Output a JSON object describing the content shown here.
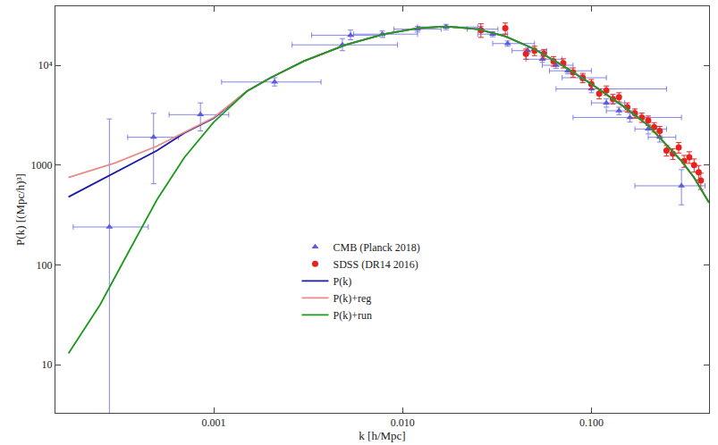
{
  "chart_data": {
    "type": "scatter",
    "x_label": "k [h/Mpc]",
    "y_label": "P(k) [(Mpc/h)³]",
    "log": true,
    "grid": false,
    "legend": "center",
    "xlim": [
      0.000145,
      0.42
    ],
    "ylim": [
      3.3,
      39000
    ],
    "xticks": [
      0.001,
      {
        "value": 0.01,
        "label": "0.010"
      },
      {
        "value": 0.1,
        "label": "0.100"
      }
    ],
    "yticks": [
      10,
      100,
      1000,
      {
        "value": 10000,
        "label": "10⁴"
      }
    ],
    "series": [
      {
        "name": "CMB (Planck 2018)",
        "type": "scatter",
        "marker": "triangle-up",
        "color": "#5c5ce0",
        "x": [
          0.00028,
          0.00048,
          0.00085,
          0.0021,
          0.0048,
          0.0053,
          0.0078,
          0.012,
          0.017,
          0.026,
          0.03,
          0.036,
          0.046,
          0.055,
          0.065,
          0.075,
          0.09,
          0.1,
          0.12,
          0.14,
          0.16,
          0.2,
          0.23,
          0.3
        ],
        "values": [
          240,
          1900,
          3200,
          6800,
          16000,
          20000,
          20500,
          23000,
          24200,
          23000,
          20500,
          16500,
          14000,
          11500,
          10000,
          8800,
          7500,
          5800,
          4200,
          3500,
          3000,
          2300,
          1900,
          620
        ],
        "x_err_minus": [
          0.0001,
          0.00013,
          0.00027,
          0.001,
          0.0022,
          0.002,
          0.0023,
          0.003,
          0.005,
          0.004,
          0.005,
          0.006,
          0.008,
          0.01,
          0.01,
          0.015,
          0.02,
          0.035,
          0.02,
          0.02,
          0.08,
          0.03,
          0.03,
          0.13
        ],
        "x_err_plus": [
          0.00017,
          0.00017,
          0.00035,
          0.0016,
          0.0046,
          0.0027,
          0.0042,
          0.004,
          0.008,
          0.006,
          0.006,
          0.014,
          0.012,
          0.015,
          0.015,
          0.025,
          0.03,
          0.15,
          0.03,
          0.03,
          0.14,
          0.05,
          0.05,
          0.1
        ],
        "y_err_minus": [
          239,
          1250,
          1000,
          600,
          2000,
          2000,
          1500,
          1500,
          1500,
          1500,
          1200,
          1000,
          900,
          800,
          700,
          600,
          500,
          500,
          400,
          300,
          300,
          250,
          200,
          220
        ],
        "y_err_plus": [
          2660,
          1400,
          1000,
          700,
          2500,
          2500,
          1500,
          1500,
          1500,
          1500,
          1200,
          1000,
          900,
          800,
          700,
          600,
          500,
          500,
          400,
          300,
          300,
          250,
          200,
          280
        ]
      },
      {
        "name": "SDSS (DR14 2016)",
        "type": "scatter",
        "marker": "circle",
        "color": "#e8231f",
        "x": [
          0.026,
          0.035,
          0.045,
          0.05,
          0.056,
          0.063,
          0.071,
          0.08,
          0.09,
          0.1,
          0.11,
          0.12,
          0.13,
          0.14,
          0.155,
          0.17,
          0.185,
          0.2,
          0.215,
          0.23,
          0.25,
          0.27,
          0.29,
          0.31,
          0.33,
          0.35,
          0.37,
          0.38
        ],
        "values": [
          22500,
          23500,
          13000,
          14000,
          13000,
          11000,
          10500,
          8500,
          7500,
          6500,
          5200,
          5600,
          4600,
          4800,
          3800,
          3300,
          3000,
          2800,
          2400,
          2200,
          1400,
          1300,
          1500,
          1100,
          1200,
          1000,
          850,
          700
        ],
        "y_err": [
          3500,
          3000,
          1500,
          1500,
          1400,
          1200,
          1100,
          900,
          800,
          700,
          600,
          600,
          500,
          500,
          400,
          350,
          320,
          300,
          260,
          240,
          170,
          160,
          180,
          150,
          160,
          150,
          140,
          130
        ]
      },
      {
        "name": "P(k)",
        "type": "line",
        "line_style": "solid",
        "color": "#1a1aa6",
        "x": [
          0.00017,
          0.0003,
          0.0005,
          0.0007,
          0.001,
          0.0015,
          0.002,
          0.003,
          0.005,
          0.008,
          0.012,
          0.017,
          0.025,
          0.035,
          0.05,
          0.07,
          0.1,
          0.15,
          0.2,
          0.3,
          0.35,
          0.42
        ],
        "values": [
          480,
          850,
          1400,
          2100,
          2950,
          5500,
          7500,
          11000,
          16000,
          20500,
          23500,
          24500,
          23000,
          19500,
          14500,
          10000,
          6500,
          3800,
          2500,
          1100,
          750,
          420
        ]
      },
      {
        "name": "P(k)+reg",
        "type": "line",
        "line_style": "solid",
        "color": "#e88a8a",
        "x": [
          0.00017,
          0.0003,
          0.0005,
          0.0007,
          0.001,
          0.0015,
          0.002,
          0.003,
          0.005,
          0.008,
          0.012,
          0.017,
          0.025,
          0.035,
          0.05,
          0.07,
          0.1,
          0.15,
          0.2,
          0.3,
          0.35,
          0.42
        ],
        "values": [
          750,
          1050,
          1550,
          2150,
          3000,
          5500,
          7500,
          11000,
          16000,
          20500,
          23500,
          24500,
          23000,
          19500,
          14500,
          10000,
          6500,
          3800,
          2500,
          1100,
          750,
          420
        ]
      },
      {
        "name": "P(k)+run",
        "type": "line",
        "line_style": "solid",
        "color": "#1a9a1a",
        "x": [
          0.00017,
          0.00025,
          0.00035,
          0.0005,
          0.0007,
          0.001,
          0.0015,
          0.002,
          0.003,
          0.005,
          0.008,
          0.012,
          0.017,
          0.025,
          0.035,
          0.05,
          0.07,
          0.1,
          0.15,
          0.2,
          0.3,
          0.35,
          0.42
        ],
        "values": [
          13,
          40,
          130,
          450,
          1200,
          2700,
          5500,
          7500,
          11000,
          16000,
          20500,
          23500,
          24500,
          23000,
          19500,
          14500,
          10000,
          6500,
          3800,
          2500,
          1100,
          750,
          420
        ]
      }
    ]
  }
}
